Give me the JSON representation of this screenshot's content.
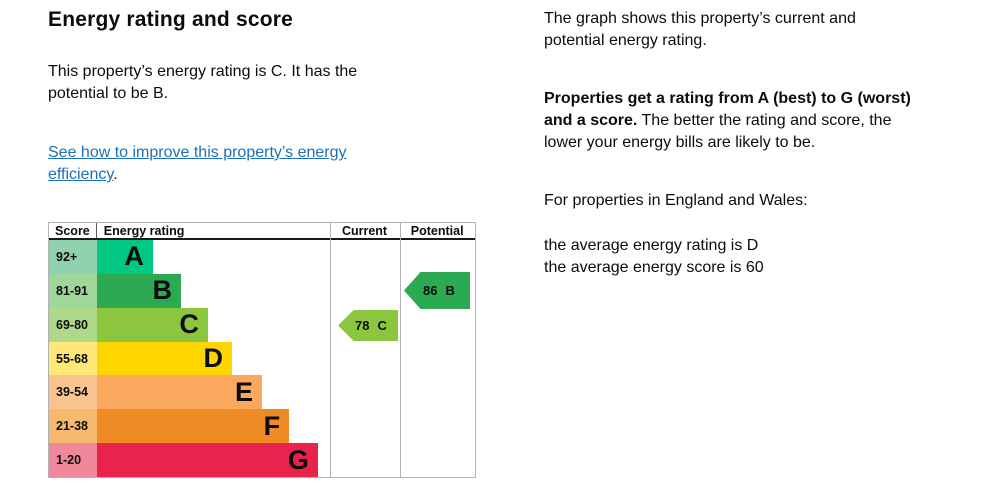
{
  "page": {
    "background": "#ffffff",
    "text_color": "#0b0c0c",
    "link_color": "#1d70b8"
  },
  "left_column": {
    "title": "Energy rating and score",
    "summary_line1": "This property’s energy rating is C. It has the",
    "summary_line2": "potential to be B.",
    "improve_link_line1": "See how to improve this property’s energy",
    "improve_link_line2": "efficiency",
    "improve_link_suffix": "."
  },
  "right_column": {
    "graph_intro_line1": "The graph shows this property’s current and",
    "graph_intro_line2": "potential energy rating.",
    "explainer_line1_bold": "Properties get a rating from A (best) to G (worst)",
    "explainer_line2_bold": "and a score.",
    "explainer_line2_rest": " The better the rating and score, the",
    "explainer_line3": "lower your energy bills are likely to be.",
    "region_heading": "For properties in England and Wales:",
    "average_rating_line": "the average energy rating is D",
    "average_score_line": "the average energy score is 60"
  },
  "chart_data": {
    "type": "bar",
    "title": "Energy rating and score",
    "columns": {
      "score": "Score",
      "rating": "Energy rating",
      "current": "Current",
      "potential": "Potential"
    },
    "bands": [
      {
        "range": "92+",
        "letter": "A",
        "bar_color": "#00c781",
        "range_bg": "#8fd2ad",
        "bar_pct": 23.9
      },
      {
        "range": "81-91",
        "letter": "B",
        "bar_color": "#2caa53",
        "range_bg": "#9fd79a",
        "bar_pct": 35.9
      },
      {
        "range": "69-80",
        "letter": "C",
        "bar_color": "#8cc63f",
        "range_bg": "#afd88a",
        "bar_pct": 47.4
      },
      {
        "range": "55-68",
        "letter": "D",
        "bar_color": "#ffd500",
        "range_bg": "#ffe878",
        "bar_pct": 57.7
      },
      {
        "range": "39-54",
        "letter": "E",
        "bar_color": "#faa85e",
        "range_bg": "#fac490",
        "bar_pct": 70.5
      },
      {
        "range": "21-38",
        "letter": "F",
        "bar_color": "#ef8b25",
        "range_bg": "#f6b96f",
        "bar_pct": 82.1
      },
      {
        "range": "1-20",
        "letter": "G",
        "bar_color": "#e9234b",
        "range_bg": "#f1879b",
        "bar_pct": 94.4
      }
    ],
    "current": {
      "score": "78",
      "band": "C",
      "color": "#8cc63f",
      "band_index": 2
    },
    "potential": {
      "score": "86",
      "band": "B",
      "color": "#2caa53",
      "band_index": 1
    }
  }
}
